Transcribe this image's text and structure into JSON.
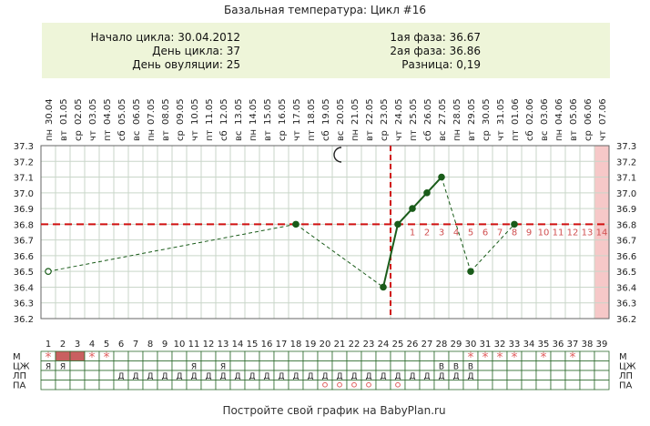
{
  "title": "Базальная температура: Цикл #16",
  "info": {
    "start_label": "Начало цикла: 30.04.2012",
    "day_label": "День цикла: 37",
    "ovulation_label": "День овуляции: 25",
    "phase1_label": "1ая фаза: 36.67",
    "phase2_label": "2ая фаза: 36.86",
    "diff_label": "Разница: 0,19"
  },
  "footer": "Постройте свой график на BabyPlan.ru",
  "colors": {
    "info_bg": "#eef5d9",
    "line": "#1a5c1a",
    "dashed": "#d01010",
    "highlight": "#f6c8c8",
    "row_highlight": "#c96060",
    "grid": "#2f6b2f",
    "faint_grid": "#c9d6c9",
    "star": "#e06060",
    "phase2_numbers": "#d05050"
  },
  "chart_data": {
    "type": "line",
    "ylim": [
      36.2,
      37.3
    ],
    "yticks": [
      "37.3",
      "37.2",
      "37.1",
      "37.0",
      "36.9",
      "36.8",
      "36.7",
      "36.6",
      "36.5",
      "36.4",
      "36.3",
      "36.2"
    ],
    "cover_line": 36.8,
    "ovulation_day": 25,
    "cycle_days": 39,
    "day_numbers": [
      "1",
      "2",
      "3",
      "4",
      "5",
      "6",
      "7",
      "8",
      "9",
      "10",
      "11",
      "12",
      "13",
      "14",
      "15",
      "16",
      "17",
      "18",
      "19",
      "20",
      "21",
      "22",
      "23",
      "24",
      "25",
      "26",
      "27",
      "28",
      "29",
      "30",
      "31",
      "32",
      "33",
      "34",
      "35",
      "36",
      "37",
      "38",
      "39"
    ],
    "weekdays": [
      "пн",
      "вт",
      "ср",
      "чт",
      "пт",
      "сб",
      "вс",
      "пн",
      "вт",
      "ср",
      "чт",
      "пт",
      "сб",
      "вс",
      "пн",
      "вт",
      "ср",
      "чт",
      "пт",
      "сб",
      "вс",
      "пн",
      "вт",
      "ср",
      "чт",
      "пт",
      "сб",
      "вс",
      "пн",
      "вт",
      "ср",
      "чт",
      "пт",
      "сб",
      "вс",
      "пн",
      "вт",
      "ср",
      "чт"
    ],
    "dates": [
      "30.04",
      "01.05",
      "02.05",
      "03.05",
      "04.05",
      "05.05",
      "06.05",
      "07.05",
      "08.05",
      "09.05",
      "10.05",
      "11.05",
      "12.05",
      "13.05",
      "14.05",
      "15.05",
      "16.05",
      "17.05",
      "18.05",
      "19.05",
      "20.05",
      "21.05",
      "22.05",
      "23.05",
      "24.05",
      "25.05",
      "26.05",
      "27.05",
      "28.05",
      "29.05",
      "30.05",
      "31.05",
      "01.06",
      "02.06",
      "03.06",
      "04.06",
      "05.06",
      "06.06",
      "07.06"
    ],
    "phase2_counts": [
      "1",
      "2",
      "3",
      "4",
      "5",
      "6",
      "7",
      "8",
      "9",
      "10",
      "11",
      "12",
      "13",
      "14"
    ],
    "points": [
      {
        "day": 1,
        "temp": 36.5,
        "open": true
      },
      {
        "day": 18,
        "temp": 36.8
      },
      {
        "day": 24,
        "temp": 36.4
      },
      {
        "day": 25,
        "temp": 36.8
      },
      {
        "day": 26,
        "temp": 36.9
      },
      {
        "day": 27,
        "temp": 37.0
      },
      {
        "day": 28,
        "temp": 37.1
      },
      {
        "day": 30,
        "temp": 36.5
      },
      {
        "day": 33,
        "temp": 36.8
      }
    ],
    "solid_segments": [
      [
        25,
        26
      ],
      [
        26,
        27
      ],
      [
        27,
        28
      ]
    ],
    "moon_day": 21,
    "highlight_day": 39
  },
  "rows": [
    {
      "label": "М",
      "right_label": "М",
      "cells": {
        "1": "*",
        "2": "",
        "3": "",
        "4": "*",
        "5": "*",
        "30": "*",
        "31": "*",
        "32": "*",
        "33": "*",
        "35": "*",
        "37": "*"
      },
      "filled": [
        2,
        3
      ]
    },
    {
      "label": "ЦЖ",
      "right_label": "ЦЖ",
      "cells": {
        "1": "Я",
        "2": "Я",
        "11": "Я",
        "13": "Я",
        "28": "В",
        "29": "В",
        "30": "В"
      }
    },
    {
      "label": "ЛП",
      "right_label": "ЛП",
      "cells": {
        "6": "Д",
        "7": "Д",
        "8": "Д",
        "9": "Д",
        "10": "Д",
        "11": "Д",
        "12": "Д",
        "13": "Д",
        "14": "Д",
        "15": "Д",
        "16": "Д",
        "17": "Д",
        "18": "Д",
        "19": "Д",
        "20": "Д",
        "21": "Д",
        "22": "Д",
        "23": "Д",
        "24": "Д",
        "25": "Д",
        "26": "Д",
        "27": "Д",
        "28": "Д",
        "29": "Д",
        "30": "Д"
      }
    },
    {
      "label": "ПА",
      "right_label": "ПА",
      "cells": {
        "20": "o",
        "21": "o",
        "22": "o",
        "23": "o",
        "25": "o"
      }
    }
  ]
}
